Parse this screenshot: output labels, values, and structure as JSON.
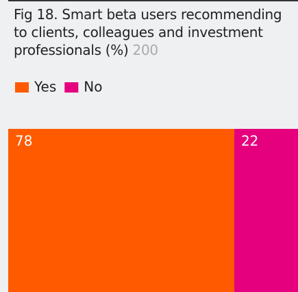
{
  "chart_data": {
    "type": "bar",
    "orientation": "horizontal",
    "stacked": true,
    "title": "Fig 18. Smart beta users recommending to clients, colleagues and investment professionals (%)",
    "subtitle": "200",
    "categories": [
      null
    ],
    "series": [
      {
        "name": "Yes",
        "color": "#ff5a00",
        "values": [
          78
        ]
      },
      {
        "name": "No",
        "color": "#e5007d",
        "values": [
          22
        ]
      }
    ],
    "xlim": [
      0,
      100
    ]
  }
}
